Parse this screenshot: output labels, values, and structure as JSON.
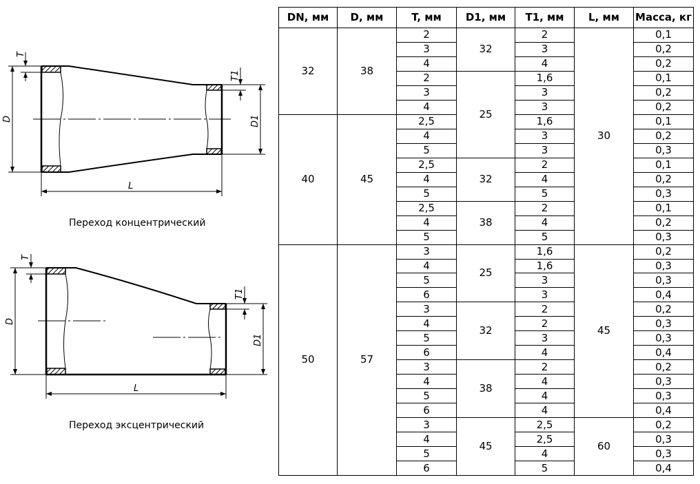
{
  "drawings": {
    "concentric": {
      "caption": "Переход концентрический",
      "labels": {
        "T": "T",
        "T1": "T1",
        "D": "D",
        "D1": "D1",
        "L": "L"
      }
    },
    "eccentric": {
      "caption": "Переход эксцентрический",
      "labels": {
        "T": "T",
        "T1": "T1",
        "D": "D",
        "D1": "D1",
        "L": "L"
      }
    }
  },
  "table": {
    "headers": [
      "DN, мм",
      "D, мм",
      "T, мм",
      "D1, мм",
      "T1, мм",
      "L, мм",
      "Масса, кг"
    ],
    "rows": [
      {
        "dn": "32",
        "d": "38",
        "t": "2",
        "d1": "32",
        "t1": "2",
        "l": "30",
        "mass": "0,1"
      },
      {
        "dn": "32",
        "d": "38",
        "t": "3",
        "d1": "32",
        "t1": "3",
        "l": "30",
        "mass": "0,2"
      },
      {
        "dn": "32",
        "d": "38",
        "t": "4",
        "d1": "32",
        "t1": "4",
        "l": "30",
        "mass": "0,2"
      },
      {
        "dn": "32",
        "d": "38",
        "t": "2",
        "d1": "25",
        "t1": "1,6",
        "l": "30",
        "mass": "0,1"
      },
      {
        "dn": "32",
        "d": "38",
        "t": "3",
        "d1": "25",
        "t1": "3",
        "l": "30",
        "mass": "0,2"
      },
      {
        "dn": "32",
        "d": "38",
        "t": "4",
        "d1": "25",
        "t1": "3",
        "l": "30",
        "mass": "0,2"
      },
      {
        "dn": "40",
        "d": "45",
        "t": "2,5",
        "d1": "25",
        "t1": "1,6",
        "l": "30",
        "mass": "0,1"
      },
      {
        "dn": "40",
        "d": "45",
        "t": "4",
        "d1": "25",
        "t1": "3",
        "l": "30",
        "mass": "0,2"
      },
      {
        "dn": "40",
        "d": "45",
        "t": "5",
        "d1": "25",
        "t1": "3",
        "l": "30",
        "mass": "0,3"
      },
      {
        "dn": "40",
        "d": "45",
        "t": "2,5",
        "d1": "32",
        "t1": "2",
        "l": "30",
        "mass": "0,1"
      },
      {
        "dn": "40",
        "d": "45",
        "t": "4",
        "d1": "32",
        "t1": "4",
        "l": "30",
        "mass": "0,2"
      },
      {
        "dn": "40",
        "d": "45",
        "t": "5",
        "d1": "32",
        "t1": "5",
        "l": "30",
        "mass": "0,3"
      },
      {
        "dn": "40",
        "d": "45",
        "t": "2,5",
        "d1": "38",
        "t1": "2",
        "l": "30",
        "mass": "0,1"
      },
      {
        "dn": "40",
        "d": "45",
        "t": "4",
        "d1": "38",
        "t1": "4",
        "l": "30",
        "mass": "0,2"
      },
      {
        "dn": "40",
        "d": "45",
        "t": "5",
        "d1": "38",
        "t1": "5",
        "l": "30",
        "mass": "0,3"
      },
      {
        "dn": "50",
        "d": "57",
        "t": "3",
        "d1": "25",
        "t1": "1,6",
        "l": "45",
        "mass": "0,2"
      },
      {
        "dn": "50",
        "d": "57",
        "t": "4",
        "d1": "25",
        "t1": "1,6",
        "l": "45",
        "mass": "0,3"
      },
      {
        "dn": "50",
        "d": "57",
        "t": "5",
        "d1": "25",
        "t1": "3",
        "l": "45",
        "mass": "0,3"
      },
      {
        "dn": "50",
        "d": "57",
        "t": "6",
        "d1": "25",
        "t1": "3",
        "l": "45",
        "mass": "0,4"
      },
      {
        "dn": "50",
        "d": "57",
        "t": "3",
        "d1": "32",
        "t1": "2",
        "l": "45",
        "mass": "0,2"
      },
      {
        "dn": "50",
        "d": "57",
        "t": "4",
        "d1": "32",
        "t1": "2",
        "l": "45",
        "mass": "0,3"
      },
      {
        "dn": "50",
        "d": "57",
        "t": "5",
        "d1": "32",
        "t1": "3",
        "l": "45",
        "mass": "0,3"
      },
      {
        "dn": "50",
        "d": "57",
        "t": "6",
        "d1": "32",
        "t1": "4",
        "l": "45",
        "mass": "0,4"
      },
      {
        "dn": "50",
        "d": "57",
        "t": "3",
        "d1": "38",
        "t1": "2",
        "l": "45",
        "mass": "0,2"
      },
      {
        "dn": "50",
        "d": "57",
        "t": "4",
        "d1": "38",
        "t1": "4",
        "l": "45",
        "mass": "0,3"
      },
      {
        "dn": "50",
        "d": "57",
        "t": "5",
        "d1": "38",
        "t1": "4",
        "l": "45",
        "mass": "0,3"
      },
      {
        "dn": "50",
        "d": "57",
        "t": "6",
        "d1": "38",
        "t1": "4",
        "l": "45",
        "mass": "0,4"
      },
      {
        "dn": "50",
        "d": "57",
        "t": "3",
        "d1": "45",
        "t1": "2,5",
        "l": "60",
        "mass": "0,2"
      },
      {
        "dn": "50",
        "d": "57",
        "t": "4",
        "d1": "45",
        "t1": "2,5",
        "l": "60",
        "mass": "0,3"
      },
      {
        "dn": "50",
        "d": "57",
        "t": "5",
        "d1": "45",
        "t1": "4",
        "l": "60",
        "mass": "0,3"
      },
      {
        "dn": "50",
        "d": "57",
        "t": "6",
        "d1": "45",
        "t1": "5",
        "l": "60",
        "mass": "0,4"
      }
    ]
  }
}
